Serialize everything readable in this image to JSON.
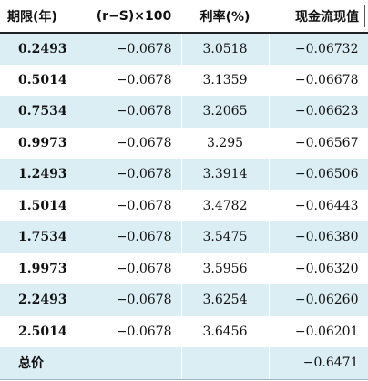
{
  "headers": {
    "term": "期限(年)",
    "rs": "(r−S)×100",
    "rate": "利率(%)",
    "pv": "现金流现值"
  },
  "rows": [
    {
      "term": "0.2493",
      "rs": "−0.0678",
      "rate": "3.0518",
      "pv": "−0.06732"
    },
    {
      "term": "0.5014",
      "rs": "−0.0678",
      "rate": "3.1359",
      "pv": "−0.06678"
    },
    {
      "term": "0.7534",
      "rs": "−0.0678",
      "rate": "3.2065",
      "pv": "−0.06623"
    },
    {
      "term": "0.9973",
      "rs": "−0.0678",
      "rate": "3.295",
      "pv": "−0.06567"
    },
    {
      "term": "1.2493",
      "rs": "−0.0678",
      "rate": "3.3914",
      "pv": "−0.06506"
    },
    {
      "term": "1.5014",
      "rs": "−0.0678",
      "rate": "3.4782",
      "pv": "−0.06443"
    },
    {
      "term": "1.7534",
      "rs": "−0.0678",
      "rate": "3.5475",
      "pv": "−0.06380"
    },
    {
      "term": "1.9973",
      "rs": "−0.0678",
      "rate": "3.5956",
      "pv": "−0.06320"
    },
    {
      "term": "2.2493",
      "rs": "−0.0678",
      "rate": "3.6254",
      "pv": "−0.06260"
    },
    {
      "term": "2.5014",
      "rs": "−0.0678",
      "rate": "3.6456",
      "pv": "−0.06201"
    }
  ],
  "total": {
    "label": "总价",
    "value": "−0.6471"
  },
  "colors": {
    "stripe": "#dbeef4",
    "header_rule": "#222222"
  }
}
